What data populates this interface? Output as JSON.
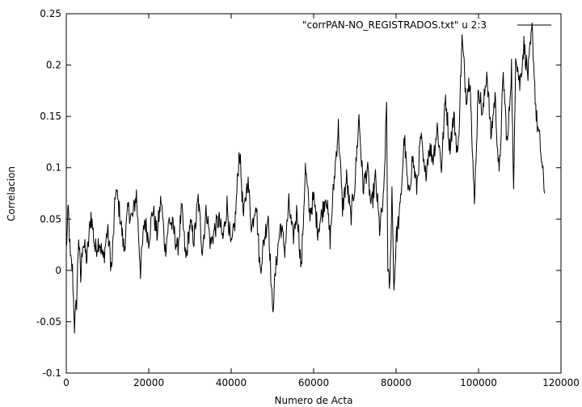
{
  "chart_data": {
    "type": "line",
    "title": "",
    "xlabel": "Numero de Acta",
    "ylabel": "Correlacion",
    "xlim": [
      0,
      120000
    ],
    "ylim": [
      -0.1,
      0.25
    ],
    "x_ticks": [
      0,
      20000,
      40000,
      60000,
      80000,
      100000,
      120000
    ],
    "x_tick_labels": [
      "0",
      "20000",
      "40000",
      "60000",
      "80000",
      "100000",
      "120000"
    ],
    "y_ticks": [
      -0.1,
      -0.05,
      0,
      0.05,
      0.1,
      0.15,
      0.2,
      0.25
    ],
    "y_tick_labels": [
      "-0.1",
      "-0.05",
      "0",
      "0.05",
      "0.1",
      "0.15",
      "0.2",
      "0.25"
    ],
    "grid": false,
    "legend": "top-right",
    "series": [
      {
        "name": "\"corrPAN-NO_REGISTRADOS.txt\" u 2:3",
        "color": "#000000",
        "x": [
          0,
          500,
          1000,
          1500,
          2000,
          2500,
          3000,
          3500,
          4000,
          5000,
          6000,
          7000,
          8000,
          9000,
          10000,
          11000,
          12000,
          13000,
          14000,
          15000,
          16000,
          17000,
          18000,
          19000,
          20000,
          21000,
          22000,
          23000,
          24000,
          25000,
          26000,
          27000,
          28000,
          29000,
          30000,
          31000,
          32000,
          33000,
          34000,
          35000,
          36000,
          37000,
          38000,
          39000,
          40000,
          41000,
          42000,
          43000,
          44000,
          45000,
          46000,
          47000,
          48000,
          49000,
          50000,
          51000,
          52000,
          53000,
          54000,
          55000,
          56000,
          57000,
          58000,
          59000,
          60000,
          61000,
          62000,
          63000,
          64000,
          65000,
          66000,
          67000,
          68000,
          69000,
          70000,
          71000,
          72000,
          73000,
          74000,
          75000,
          76000,
          77000,
          77700,
          78000,
          78500,
          79000,
          79500,
          80000,
          81000,
          82000,
          83000,
          84000,
          85000,
          86000,
          87000,
          88000,
          89000,
          90000,
          91000,
          92000,
          93000,
          94000,
          95000,
          96000,
          97000,
          98000,
          98500,
          99000,
          100000,
          101000,
          102000,
          103000,
          104000,
          105000,
          106000,
          107000,
          108000,
          108500,
          109000,
          110000,
          111000,
          112000,
          113000,
          114000,
          115000,
          116000
        ],
        "y": [
          0.02,
          0.06,
          0.01,
          0.0,
          -0.055,
          -0.03,
          0.035,
          -0.01,
          0.03,
          0.01,
          0.055,
          0.02,
          0.03,
          0.01,
          0.04,
          0.0,
          0.08,
          0.055,
          0.02,
          0.06,
          0.05,
          0.075,
          0.0,
          0.05,
          0.03,
          0.06,
          0.035,
          0.07,
          0.02,
          0.05,
          0.04,
          0.02,
          0.06,
          0.01,
          0.045,
          0.03,
          0.07,
          0.02,
          0.06,
          0.025,
          0.04,
          0.05,
          0.03,
          0.065,
          0.02,
          0.05,
          0.12,
          0.05,
          0.09,
          0.04,
          0.07,
          0.0,
          0.03,
          0.055,
          -0.04,
          0.01,
          0.045,
          0.02,
          0.065,
          0.03,
          0.06,
          0.0,
          0.1,
          0.055,
          0.07,
          0.04,
          0.055,
          0.075,
          0.03,
          0.09,
          0.14,
          0.06,
          0.09,
          0.05,
          0.085,
          0.15,
          0.08,
          0.1,
          0.06,
          0.09,
          0.04,
          0.07,
          0.165,
          -0.005,
          -0.015,
          0.08,
          -0.02,
          0.03,
          0.06,
          0.13,
          0.07,
          0.11,
          0.08,
          0.13,
          0.09,
          0.12,
          0.11,
          0.14,
          0.1,
          0.17,
          0.12,
          0.15,
          0.11,
          0.225,
          0.17,
          0.19,
          0.11,
          0.07,
          0.18,
          0.15,
          0.195,
          0.13,
          0.17,
          0.09,
          0.19,
          0.12,
          0.2,
          0.07,
          0.215,
          0.18,
          0.22,
          0.19,
          0.235,
          0.15,
          0.12,
          0.075
        ]
      }
    ]
  }
}
